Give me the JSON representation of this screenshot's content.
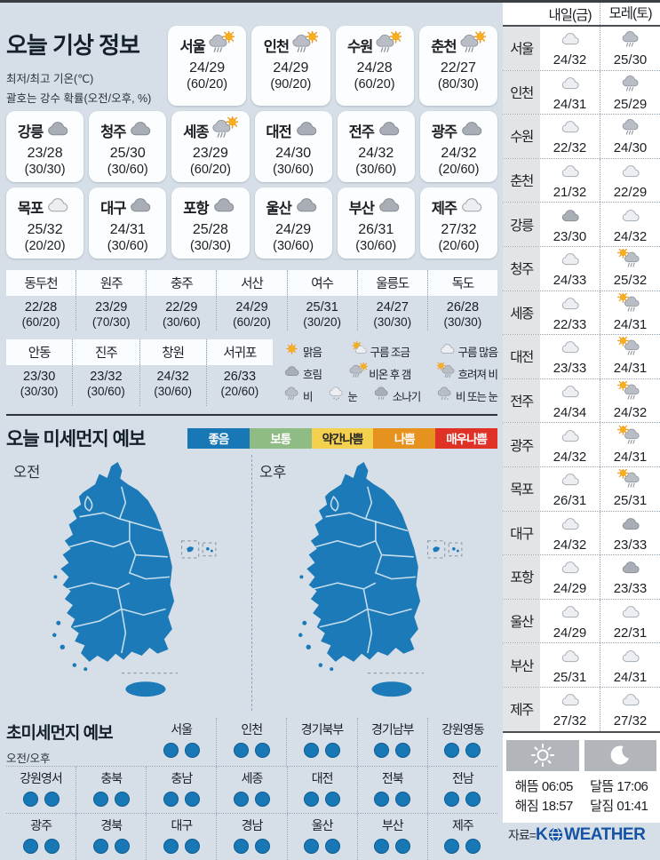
{
  "today": {
    "title": "오늘 기상 정보",
    "subtitle1": "최저/최고 기온(℃)",
    "subtitle2": "괄호는 강수 확률(오전/오후, %)",
    "cards": [
      {
        "name": "서울",
        "icon": "rain-then-sun",
        "temp": "24/29",
        "prob": "(60/20)"
      },
      {
        "name": "인천",
        "icon": "rain-then-sun",
        "temp": "24/29",
        "prob": "(90/20)"
      },
      {
        "name": "수원",
        "icon": "rain-then-sun",
        "temp": "24/28",
        "prob": "(60/20)"
      },
      {
        "name": "춘천",
        "icon": "rain-then-sun",
        "temp": "22/27",
        "prob": "(80/30)"
      },
      {
        "name": "강릉",
        "icon": "overcast",
        "temp": "23/28",
        "prob": "(30/30)"
      },
      {
        "name": "청주",
        "icon": "overcast",
        "temp": "25/30",
        "prob": "(30/60)"
      },
      {
        "name": "세종",
        "icon": "rain-then-sun",
        "temp": "23/29",
        "prob": "(60/20)"
      },
      {
        "name": "대전",
        "icon": "overcast",
        "temp": "24/30",
        "prob": "(30/60)"
      },
      {
        "name": "전주",
        "icon": "overcast",
        "temp": "24/32",
        "prob": "(30/60)"
      },
      {
        "name": "광주",
        "icon": "overcast",
        "temp": "24/32",
        "prob": "(20/60)"
      },
      {
        "name": "목포",
        "icon": "cloudy",
        "temp": "25/32",
        "prob": "(20/20)"
      },
      {
        "name": "대구",
        "icon": "overcast",
        "temp": "24/31",
        "prob": "(30/60)"
      },
      {
        "name": "포항",
        "icon": "overcast",
        "temp": "25/28",
        "prob": "(30/30)"
      },
      {
        "name": "울산",
        "icon": "overcast",
        "temp": "24/29",
        "prob": "(30/60)"
      },
      {
        "name": "부산",
        "icon": "overcast",
        "temp": "26/31",
        "prob": "(30/60)"
      },
      {
        "name": "제주",
        "icon": "cloudy",
        "temp": "27/32",
        "prob": "(20/60)"
      }
    ],
    "extra_rows": [
      [
        {
          "name": "동두천",
          "temp": "22/28",
          "prob": "(60/20)"
        },
        {
          "name": "원주",
          "temp": "23/29",
          "prob": "(70/30)"
        },
        {
          "name": "충주",
          "temp": "22/29",
          "prob": "(30/60)"
        },
        {
          "name": "서산",
          "temp": "24/29",
          "prob": "(60/20)"
        },
        {
          "name": "여수",
          "temp": "25/31",
          "prob": "(30/20)"
        },
        {
          "name": "울릉도",
          "temp": "24/27",
          "prob": "(30/30)"
        },
        {
          "name": "독도",
          "temp": "26/28",
          "prob": "(30/30)"
        }
      ],
      [
        {
          "name": "안동",
          "temp": "23/30",
          "prob": "(30/30)"
        },
        {
          "name": "진주",
          "temp": "23/32",
          "prob": "(30/60)"
        },
        {
          "name": "창원",
          "temp": "24/32",
          "prob": "(30/60)"
        },
        {
          "name": "서귀포",
          "temp": "26/33",
          "prob": "(20/60)"
        }
      ]
    ],
    "icon_legend": [
      [
        {
          "icon": "sun",
          "label": "맑음"
        },
        {
          "icon": "partly-cloudy",
          "label": "구름 조금"
        },
        {
          "icon": "cloudy",
          "label": "구름 많음"
        }
      ],
      [
        {
          "icon": "overcast",
          "label": "흐림"
        },
        {
          "icon": "rain-then-sun",
          "label": "비온 후 갬"
        },
        {
          "icon": "sun-then-rain",
          "label": "흐려져 비"
        }
      ],
      [
        {
          "icon": "rain",
          "label": "비"
        },
        {
          "icon": "snow",
          "label": "눈"
        },
        {
          "icon": "shower",
          "label": "소나기"
        },
        {
          "icon": "rain-or-snow",
          "label": "비 또는 눈"
        }
      ]
    ]
  },
  "dust": {
    "title": "오늘 미세먼지 예보",
    "levels": [
      {
        "label": "좋음",
        "color": "#1878b6",
        "text": "#ffffff"
      },
      {
        "label": "보통",
        "color": "#8fbc84",
        "text": "#ffffff"
      },
      {
        "label": "약간나쁨",
        "color": "#f3d04e",
        "text": "#22262b"
      },
      {
        "label": "나쁨",
        "color": "#e6921e",
        "text": "#ffffff"
      },
      {
        "label": "매우나쁨",
        "color": "#e03127",
        "text": "#ffffff"
      }
    ],
    "maps": [
      {
        "label": "오전",
        "status": "좋음"
      },
      {
        "label": "오후",
        "status": "좋음"
      }
    ],
    "map_color": "#1d7ab8"
  },
  "ultrafine": {
    "title": "초미세먼지 예보",
    "subtitle": "오전/오후",
    "status": "좋음",
    "dot_color": "#1878b6",
    "rows": [
      [
        "서울",
        "인천",
        "경기북부",
        "경기남부",
        "강원영동"
      ],
      [
        "강원영서",
        "충북",
        "충남",
        "세종",
        "대전",
        "전북",
        "전남"
      ],
      [
        "광주",
        "경북",
        "대구",
        "경남",
        "울산",
        "부산",
        "제주"
      ]
    ]
  },
  "forecast": {
    "col1": "내일(금)",
    "col2": "모레(토)",
    "rows": [
      {
        "city": "서울",
        "d1": {
          "icon": "cloudy",
          "temp": "24/32"
        },
        "d2": {
          "icon": "rain",
          "temp": "25/30"
        }
      },
      {
        "city": "인천",
        "d1": {
          "icon": "cloudy",
          "temp": "24/31"
        },
        "d2": {
          "icon": "rain",
          "temp": "25/29"
        }
      },
      {
        "city": "수원",
        "d1": {
          "icon": "cloudy",
          "temp": "22/32"
        },
        "d2": {
          "icon": "rain",
          "temp": "24/30"
        }
      },
      {
        "city": "춘천",
        "d1": {
          "icon": "cloudy",
          "temp": "21/32"
        },
        "d2": {
          "icon": "cloudy",
          "temp": "22/29"
        }
      },
      {
        "city": "강릉",
        "d1": {
          "icon": "overcast",
          "temp": "23/30"
        },
        "d2": {
          "icon": "cloudy",
          "temp": "24/32"
        }
      },
      {
        "city": "청주",
        "d1": {
          "icon": "cloudy",
          "temp": "24/33"
        },
        "d2": {
          "icon": "sun-then-rain",
          "temp": "25/32"
        }
      },
      {
        "city": "세종",
        "d1": {
          "icon": "cloudy",
          "temp": "22/33"
        },
        "d2": {
          "icon": "sun-then-rain",
          "temp": "24/31"
        }
      },
      {
        "city": "대전",
        "d1": {
          "icon": "cloudy",
          "temp": "23/33"
        },
        "d2": {
          "icon": "sun-then-rain",
          "temp": "24/31"
        }
      },
      {
        "city": "전주",
        "d1": {
          "icon": "cloudy",
          "temp": "24/34"
        },
        "d2": {
          "icon": "sun-then-rain",
          "temp": "24/32"
        }
      },
      {
        "city": "광주",
        "d1": {
          "icon": "cloudy",
          "temp": "24/32"
        },
        "d2": {
          "icon": "sun-then-rain",
          "temp": "24/31"
        }
      },
      {
        "city": "목포",
        "d1": {
          "icon": "cloudy",
          "temp": "26/31"
        },
        "d2": {
          "icon": "sun-then-rain",
          "temp": "25/31"
        }
      },
      {
        "city": "대구",
        "d1": {
          "icon": "cloudy",
          "temp": "24/32"
        },
        "d2": {
          "icon": "overcast",
          "temp": "23/33"
        }
      },
      {
        "city": "포항",
        "d1": {
          "icon": "cloudy",
          "temp": "24/29"
        },
        "d2": {
          "icon": "overcast",
          "temp": "23/33"
        }
      },
      {
        "city": "울산",
        "d1": {
          "icon": "cloudy",
          "temp": "24/29"
        },
        "d2": {
          "icon": "cloudy",
          "temp": "22/31"
        }
      },
      {
        "city": "부산",
        "d1": {
          "icon": "cloudy",
          "temp": "25/31"
        },
        "d2": {
          "icon": "cloudy",
          "temp": "24/31"
        }
      },
      {
        "city": "제주",
        "d1": {
          "icon": "cloudy",
          "temp": "27/32"
        },
        "d2": {
          "icon": "cloudy",
          "temp": "27/32"
        }
      }
    ]
  },
  "astro": {
    "sunrise_label": "해뜸",
    "sunrise": "06:05",
    "sunset_label": "해짐",
    "sunset": "18:57",
    "moonrise_label": "달뜸",
    "moonrise": "17:06",
    "moonset_label": "달짐",
    "moonset": "01:41"
  },
  "source": {
    "prefix": "자료=",
    "brand_k": "K",
    "brand_rest": "WEATHER"
  }
}
